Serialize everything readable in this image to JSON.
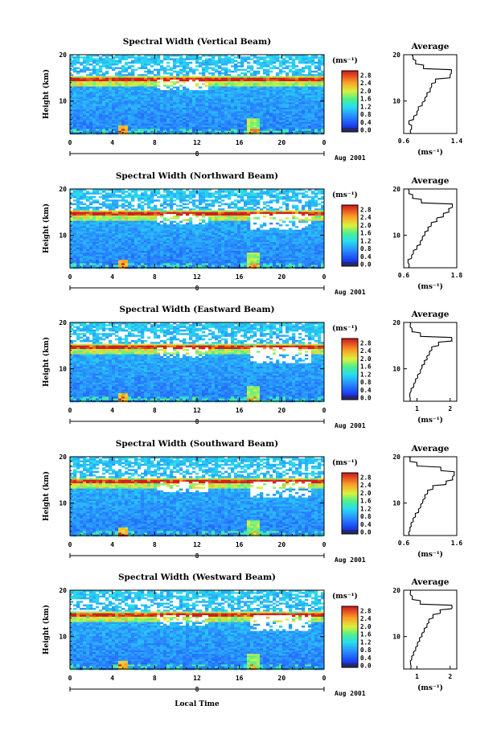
{
  "page": {
    "xlabel": "Local Time"
  },
  "chart_data": [
    {
      "type": "heatmap",
      "title": "Spectral Width (Vertical Beam)",
      "ylabel": "Height (km)",
      "xlim": [
        0,
        24
      ],
      "ylim": [
        3,
        20
      ],
      "x_ticks": [
        "0",
        "4",
        "8",
        "12",
        "16",
        "20",
        "0"
      ],
      "y_ticks": [
        "10",
        "20"
      ],
      "date_marker": "8",
      "date_label": "Aug 2001",
      "colorbar": {
        "unit": "(ms⁻¹)",
        "ticks": [
          "2.8",
          "2.4",
          "2.0",
          "1.6",
          "1.2",
          "0.8",
          "0.4",
          "0.0"
        ],
        "range": [
          0,
          3.0
        ]
      },
      "average": {
        "title": "Average",
        "unit": "(ms⁻¹)",
        "xlim": [
          0.6,
          1.4
        ],
        "x_ticks": [
          "0.6",
          "1.4"
        ],
        "y_ticks": [
          "10",
          "20"
        ],
        "heights": [
          3,
          4,
          5,
          6,
          7,
          8,
          9,
          10,
          11,
          12,
          13,
          14,
          15,
          16,
          17,
          18,
          19,
          20
        ],
        "values": [
          0.7,
          0.72,
          0.68,
          0.75,
          0.8,
          0.82,
          0.88,
          0.92,
          0.95,
          1.0,
          1.02,
          1.08,
          1.3,
          1.32,
          0.9,
          0.78,
          0.74,
          0.72
        ]
      }
    },
    {
      "type": "heatmap",
      "title": "Spectral Width (Northward Beam)",
      "ylabel": "Height (km)",
      "xlim": [
        0,
        24
      ],
      "ylim": [
        3,
        20
      ],
      "x_ticks": [
        "0",
        "4",
        "8",
        "12",
        "16",
        "20",
        "0"
      ],
      "y_ticks": [
        "10",
        "20"
      ],
      "date_marker": "8",
      "date_label": "Aug 2001",
      "colorbar": {
        "unit": "(ms⁻¹)",
        "ticks": [
          "2.8",
          "2.4",
          "2.0",
          "1.6",
          "1.2",
          "0.8",
          "0.4",
          "0.0"
        ],
        "range": [
          0,
          3.0
        ]
      },
      "average": {
        "title": "Average",
        "unit": "(ms⁻¹)",
        "xlim": [
          0.6,
          1.8
        ],
        "x_ticks": [
          "0.6",
          "1.8"
        ],
        "y_ticks": [
          "10",
          "20"
        ],
        "heights": [
          3,
          4,
          5,
          6,
          7,
          8,
          9,
          10,
          11,
          12,
          13,
          14,
          15,
          16,
          17,
          18,
          19,
          20
        ],
        "values": [
          0.72,
          0.7,
          0.78,
          0.82,
          0.9,
          0.98,
          1.02,
          1.08,
          1.15,
          1.22,
          1.35,
          1.5,
          1.62,
          1.7,
          1.0,
          0.8,
          0.72,
          0.7
        ]
      }
    },
    {
      "type": "heatmap",
      "title": "Spectral Width (Eastward Beam)",
      "ylabel": "Height (km)",
      "xlim": [
        0,
        24
      ],
      "ylim": [
        3,
        20
      ],
      "x_ticks": [
        "0",
        "4",
        "8",
        "12",
        "16",
        "20",
        "0"
      ],
      "y_ticks": [
        "10",
        "20"
      ],
      "date_marker": "8",
      "date_label": "Aug 2001",
      "colorbar": {
        "unit": "(ms⁻¹)",
        "ticks": [
          "2.8",
          "2.4",
          "2.0",
          "1.6",
          "1.2",
          "0.8",
          "0.4",
          "0.0"
        ],
        "range": [
          0,
          3.0
        ]
      },
      "average": {
        "title": "Average",
        "unit": "(ms⁻¹)",
        "xlim": [
          0.6,
          2.2
        ],
        "x_ticks": [
          "1",
          "2"
        ],
        "x_tick_values": [
          1,
          2
        ],
        "y_ticks": [
          "10",
          "20"
        ],
        "heights": [
          3,
          4,
          5,
          6,
          7,
          8,
          9,
          10,
          11,
          12,
          13,
          14,
          15,
          16,
          17,
          18,
          19,
          20
        ],
        "values": [
          0.8,
          0.78,
          0.82,
          0.9,
          0.95,
          1.02,
          1.1,
          1.15,
          1.22,
          1.3,
          1.38,
          1.45,
          1.65,
          2.05,
          1.1,
          0.85,
          0.8,
          0.78
        ]
      }
    },
    {
      "type": "heatmap",
      "title": "Spectral Width (Southward Beam)",
      "ylabel": "Height (km)",
      "xlim": [
        0,
        24
      ],
      "ylim": [
        3,
        20
      ],
      "x_ticks": [
        "0",
        "4",
        "8",
        "12",
        "16",
        "20",
        "0"
      ],
      "y_ticks": [
        "10",
        "20"
      ],
      "date_marker": "8",
      "date_label": "Aug 2001",
      "colorbar": {
        "unit": "(ms⁻¹)",
        "ticks": [
          "2.8",
          "2.4",
          "2.0",
          "1.6",
          "1.2",
          "0.8",
          "0.4",
          "0.0"
        ],
        "range": [
          0,
          3.0
        ]
      },
      "average": {
        "title": "Average",
        "unit": "(ms⁻¹)",
        "xlim": [
          0.6,
          1.6
        ],
        "x_ticks": [
          "0.6",
          "1.6"
        ],
        "y_ticks": [
          "10",
          "20"
        ],
        "heights": [
          3,
          4,
          5,
          6,
          7,
          8,
          9,
          10,
          11,
          12,
          13,
          14,
          15,
          16,
          17,
          18,
          19,
          20
        ],
        "values": [
          0.7,
          0.72,
          0.74,
          0.78,
          0.82,
          0.88,
          0.92,
          0.96,
          1.0,
          1.05,
          1.15,
          1.4,
          1.52,
          1.55,
          1.3,
          0.85,
          0.72,
          0.7
        ]
      }
    },
    {
      "type": "heatmap",
      "title": "Spectral Width (Westward Beam)",
      "ylabel": "Height (km)",
      "xlim": [
        0,
        24
      ],
      "ylim": [
        3,
        20
      ],
      "x_ticks": [
        "0",
        "4",
        "8",
        "12",
        "16",
        "20",
        "0"
      ],
      "y_ticks": [
        "10",
        "20"
      ],
      "date_marker": "8",
      "date_label": "Aug 2001",
      "colorbar": {
        "unit": "(ms⁻¹)",
        "ticks": [
          "2.8",
          "2.4",
          "2.0",
          "1.6",
          "1.2",
          "0.8",
          "0.4",
          "0.0"
        ],
        "range": [
          0,
          3.0
        ]
      },
      "average": {
        "title": "Average",
        "unit": "(ms⁻¹)",
        "xlim": [
          0.6,
          2.2
        ],
        "x_ticks": [
          "1",
          "2"
        ],
        "x_tick_values": [
          1,
          2
        ],
        "y_ticks": [
          "10",
          "20"
        ],
        "heights": [
          3,
          4,
          5,
          6,
          7,
          8,
          9,
          10,
          11,
          12,
          13,
          14,
          15,
          16,
          17,
          18,
          19,
          20
        ],
        "values": [
          0.82,
          0.8,
          0.84,
          0.9,
          0.96,
          1.02,
          1.08,
          1.15,
          1.22,
          1.3,
          1.36,
          1.48,
          1.7,
          2.05,
          1.1,
          0.86,
          0.8,
          0.8
        ]
      }
    }
  ]
}
